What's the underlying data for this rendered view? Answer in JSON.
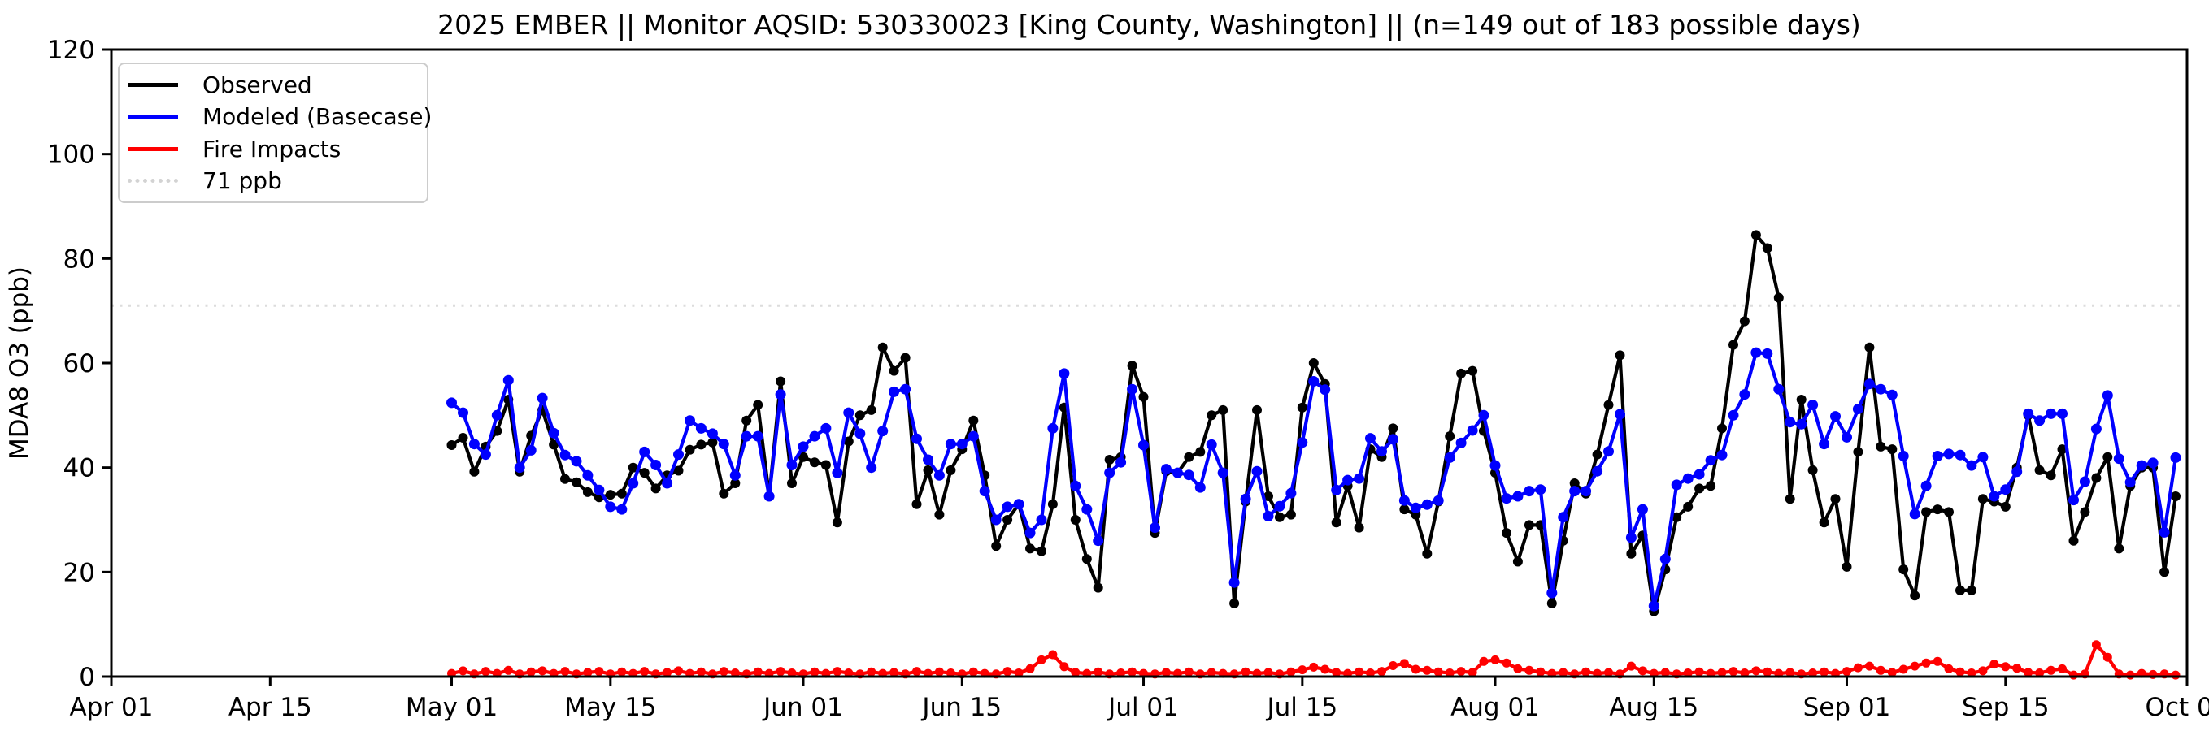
{
  "title": "2025 EMBER || Monitor AQSID: 530330023 [King County, Washington] || (n=149 out of 183 possible days)",
  "legend": {
    "items": [
      {
        "label": "Observed",
        "color": "#000000",
        "style": "solid"
      },
      {
        "label": "Modeled (Basecase)",
        "color": "#0000ff",
        "style": "solid"
      },
      {
        "label": "Fire Impacts",
        "color": "#ff0000",
        "style": "solid"
      },
      {
        "label": "71 ppb",
        "color": "#d3d3d3",
        "style": "dotted"
      }
    ]
  },
  "colors": {
    "observed": "#000000",
    "modeled": "#0000ff",
    "fire": "#ff0000",
    "threshold": "#dcdcdc",
    "spine": "#000000",
    "background": "#ffffff"
  },
  "chart_data": {
    "type": "line",
    "title": "2025 EMBER || Monitor AQSID: 530330023 [King County, Washington] || (n=149 out of 183 possible days)",
    "xlabel": "",
    "ylabel": "MDA8 O3 (ppb)",
    "ylim": [
      0,
      120
    ],
    "yticks": [
      0,
      20,
      40,
      60,
      80,
      100,
      120
    ],
    "x_total_days": 183,
    "x_start_label": "Apr 01",
    "xticks": [
      {
        "day": 0,
        "label": "Apr 01"
      },
      {
        "day": 14,
        "label": "Apr 15"
      },
      {
        "day": 30,
        "label": "May 01"
      },
      {
        "day": 44,
        "label": "May 15"
      },
      {
        "day": 61,
        "label": "Jun 01"
      },
      {
        "day": 75,
        "label": "Jun 15"
      },
      {
        "day": 91,
        "label": "Jul 01"
      },
      {
        "day": 105,
        "label": "Jul 15"
      },
      {
        "day": 122,
        "label": "Aug 01"
      },
      {
        "day": 136,
        "label": "Aug 15"
      },
      {
        "day": 153,
        "label": "Sep 01"
      },
      {
        "day": 167,
        "label": "Sep 15"
      },
      {
        "day": 183,
        "label": "Oct 01"
      }
    ],
    "threshold": {
      "label": "71 ppb",
      "value": 71
    },
    "grid": false,
    "legend_position": "upper left",
    "data_start_day": 30,
    "data_start_date": "May 01",
    "data_end_date": "Sep 30",
    "series": [
      {
        "name": "Observed",
        "color": "#000000",
        "values": [
          44.3,
          45.7,
          39.2,
          44,
          47,
          53,
          39.2,
          46.1,
          51,
          44.4,
          37.8,
          37.2,
          35.3,
          34.3,
          34.8,
          35,
          40,
          39,
          36,
          38.5,
          39.4,
          43.4,
          44.4,
          44.8,
          35,
          37,
          49,
          52,
          34.5,
          56.5,
          37,
          42,
          41,
          40.5,
          29.5,
          45,
          50,
          51,
          63,
          58.5,
          61,
          33,
          39.5,
          31,
          39.5,
          43.5,
          49,
          38.5,
          25,
          30,
          33,
          24.5,
          24,
          33,
          51.5,
          30,
          22.5,
          17,
          41.5,
          42,
          59.5,
          53.5,
          27.5,
          39.3,
          39,
          42,
          43,
          50,
          51,
          14,
          33.5,
          51,
          34.5,
          30.5,
          31,
          51.5,
          60,
          56,
          29.5,
          36.5,
          28.5,
          43.5,
          42,
          47.5,
          32,
          31,
          23.5,
          33.5,
          46,
          58,
          58.5,
          47,
          39,
          27.5,
          22,
          29,
          29,
          14,
          26,
          37,
          35,
          42.5,
          52,
          61.5,
          23.5,
          27,
          12.5,
          20.5,
          30.5,
          32.5,
          36,
          36.5,
          47.5,
          63.5,
          68,
          84.5,
          82,
          72.5,
          34,
          53,
          39.5,
          29.5,
          34,
          21,
          43,
          63,
          44,
          43.5,
          20.5,
          15.5,
          31.5,
          32,
          31.5,
          16.5,
          16.5,
          34,
          33.5,
          32.5,
          40,
          50,
          39.5,
          38.5,
          43.5,
          26,
          31.5,
          38,
          42,
          24.5,
          36.5,
          40,
          40,
          20,
          34.5
        ]
      },
      {
        "name": "Modeled (Basecase)",
        "color": "#0000ff",
        "values": [
          52.4,
          50.5,
          44.5,
          42.5,
          50,
          56.7,
          40,
          43.3,
          53.3,
          46.6,
          42.4,
          41.2,
          38.5,
          35.7,
          32.5,
          32,
          37,
          43,
          40.5,
          37,
          42.5,
          49,
          47.5,
          46.5,
          44.5,
          38.5,
          46,
          46,
          34.5,
          54,
          40.5,
          44,
          46,
          47.5,
          39,
          50.5,
          46.5,
          40,
          47,
          54.5,
          55,
          45.5,
          41.5,
          38.5,
          44.5,
          44.5,
          46,
          35.5,
          30,
          32.5,
          33,
          27.5,
          30,
          47.5,
          58,
          36.5,
          32,
          26,
          39,
          41,
          55,
          44.3,
          28.5,
          39.7,
          39,
          38.6,
          36.2,
          44.4,
          39,
          18,
          34,
          39.3,
          30.7,
          32.6,
          35.1,
          44.8,
          56.5,
          54.9,
          35.7,
          37.6,
          37.9,
          45.6,
          43.1,
          45.4,
          33.7,
          32.3,
          32.9,
          33.7,
          41.9,
          44.7,
          47.1,
          50,
          40.4,
          34.1,
          34.5,
          35.5,
          35.8,
          16,
          30.5,
          35.5,
          35.5,
          39.3,
          43.1,
          50.2,
          26.6,
          32,
          13.5,
          22.5,
          36.7,
          37.9,
          38.7,
          41.4,
          42.4,
          50,
          54,
          62,
          61.8,
          55,
          48.7,
          48.3,
          52,
          44.5,
          49.8,
          45.8,
          51.2,
          56,
          55,
          53.9,
          42.2,
          31.1,
          36.5,
          42.2,
          42.6,
          42.4,
          40.4,
          42,
          34.5,
          35.8,
          39.2,
          50.3,
          49,
          50.3,
          50.3,
          33.8,
          37.3,
          47.4,
          53.8,
          41.7,
          37.2,
          40.4,
          40.9,
          27.6,
          41.9
        ]
      },
      {
        "name": "Fire Impacts",
        "color": "#ff0000",
        "values": [
          0.6,
          1.1,
          0.5,
          1.0,
          0.6,
          1.2,
          0.5,
          0.9,
          1.1,
          0.6,
          1.0,
          0.5,
          0.8,
          1.0,
          0.5,
          0.9,
          0.6,
          1.0,
          0.5,
          0.8,
          1.1,
          0.6,
          0.9,
          0.5,
          1.0,
          0.7,
          0.5,
          0.9,
          0.6,
          1.0,
          0.7,
          0.5,
          0.9,
          0.6,
          1.0,
          0.7,
          0.5,
          0.9,
          0.6,
          0.8,
          0.5,
          1.0,
          0.6,
          0.9,
          0.7,
          0.5,
          0.9,
          0.6,
          0.5,
          1.0,
          0.7,
          1.5,
          3.2,
          4.2,
          1.9,
          0.8,
          0.6,
          0.9,
          0.5,
          0.7,
          0.9,
          0.6,
          0.5,
          0.8,
          0.6,
          0.9,
          0.5,
          0.8,
          0.6,
          0.5,
          0.9,
          0.6,
          0.8,
          0.5,
          0.9,
          1.3,
          1.8,
          1.4,
          0.8,
          0.6,
          0.9,
          0.7,
          1.0,
          2.1,
          2.5,
          1.4,
          1.2,
          0.9,
          0.7,
          1.0,
          0.8,
          2.9,
          3.2,
          2.6,
          1.5,
          1.2,
          0.9,
          0.6,
          0.8,
          0.5,
          0.9,
          0.6,
          0.8,
          0.5,
          2.0,
          1.1,
          0.6,
          0.8,
          0.5,
          0.7,
          0.9,
          0.6,
          0.8,
          1.0,
          0.7,
          1.1,
          0.9,
          0.6,
          0.8,
          0.5,
          0.7,
          0.9,
          0.6,
          1.0,
          1.7,
          2.0,
          1.2,
          0.8,
          1.4,
          2.0,
          2.6,
          2.9,
          1.5,
          0.9,
          0.7,
          1.1,
          2.4,
          1.9,
          1.6,
          0.8,
          0.7,
          1.2,
          1.5,
          0.3,
          0.5,
          6.1,
          3.7,
          0.5,
          0.3,
          0.6,
          0.4,
          0.5,
          0.3
        ]
      }
    ]
  }
}
